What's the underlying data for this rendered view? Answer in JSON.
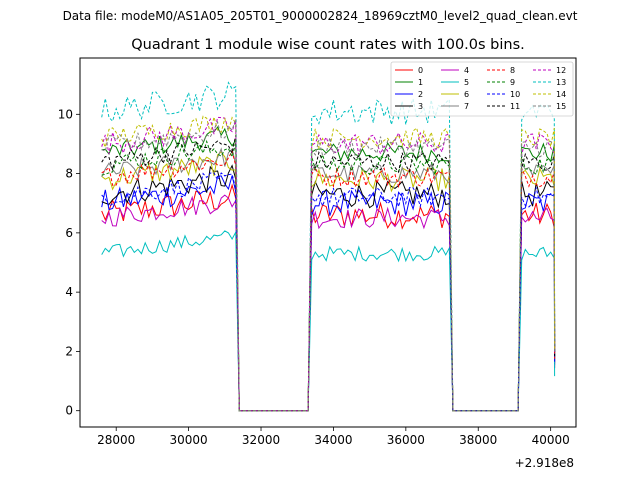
{
  "chart_data": {
    "type": "line",
    "suptitle": "Data file: modeM0/AS1A05_205T01_9000002824_18969cztM0_level2_quad_clean.evt",
    "title": "Quadrant 1 module wise count rates with 100.0s bins.",
    "xlabel": "",
    "ylabel": "",
    "x_offset_label": "+2.918e8",
    "xlim": [
      27000,
      40700
    ],
    "ylim": [
      -0.55,
      11.9
    ],
    "x_ticks": [
      28000,
      30000,
      32000,
      34000,
      36000,
      38000,
      40000
    ],
    "x_tick_labels": [
      "28000",
      "30000",
      "32000",
      "34000",
      "36000",
      "38000",
      "40000"
    ],
    "y_ticks": [
      0,
      2,
      4,
      6,
      8,
      10
    ],
    "y_tick_labels": [
      "0",
      "2",
      "4",
      "6",
      "8",
      "10"
    ],
    "legend_position": "top-right",
    "segments": [
      {
        "start": 27600,
        "end": 31300
      },
      {
        "start": 33400,
        "end": 37200
      },
      {
        "start": 39200,
        "end": 40100
      }
    ],
    "gaps": [
      [
        31400,
        33300
      ],
      [
        37300,
        39100
      ]
    ],
    "series": [
      {
        "name": "0",
        "color": "#ff0000",
        "dash": false,
        "level": 6.6,
        "amp": 0.45
      },
      {
        "name": "1",
        "color": "#008000",
        "dash": false,
        "level": 8.7,
        "amp": 0.35
      },
      {
        "name": "2",
        "color": "#0000ff",
        "dash": false,
        "level": 7.0,
        "amp": 0.45
      },
      {
        "name": "3",
        "color": "#000000",
        "dash": false,
        "level": 7.3,
        "amp": 0.45
      },
      {
        "name": "4",
        "color": "#bf00bf",
        "dash": false,
        "level": 6.5,
        "amp": 0.35
      },
      {
        "name": "5",
        "color": "#00bfbf",
        "dash": false,
        "level": 5.3,
        "amp": 0.25
      },
      {
        "name": "6",
        "color": "#bfbf00",
        "dash": false,
        "level": 7.8,
        "amp": 0.4
      },
      {
        "name": "7",
        "color": "#808080",
        "dash": false,
        "level": 8.0,
        "amp": 0.35
      },
      {
        "name": "8",
        "color": "#ff0000",
        "dash": true,
        "level": 7.9,
        "amp": 0.35
      },
      {
        "name": "9",
        "color": "#008000",
        "dash": true,
        "level": 8.3,
        "amp": 0.35
      },
      {
        "name": "10",
        "color": "#0000ff",
        "dash": true,
        "level": 7.2,
        "amp": 0.35
      },
      {
        "name": "11",
        "color": "#000000",
        "dash": true,
        "level": 8.4,
        "amp": 0.35
      },
      {
        "name": "12",
        "color": "#bf00bf",
        "dash": true,
        "level": 9.0,
        "amp": 0.4
      },
      {
        "name": "13",
        "color": "#00bfbf",
        "dash": true,
        "level": 10.1,
        "amp": 0.45
      },
      {
        "name": "14",
        "color": "#bfbf00",
        "dash": true,
        "level": 9.2,
        "amp": 0.35
      },
      {
        "name": "15",
        "color": "#808080",
        "dash": true,
        "level": 8.9,
        "amp": 0.35
      }
    ]
  }
}
